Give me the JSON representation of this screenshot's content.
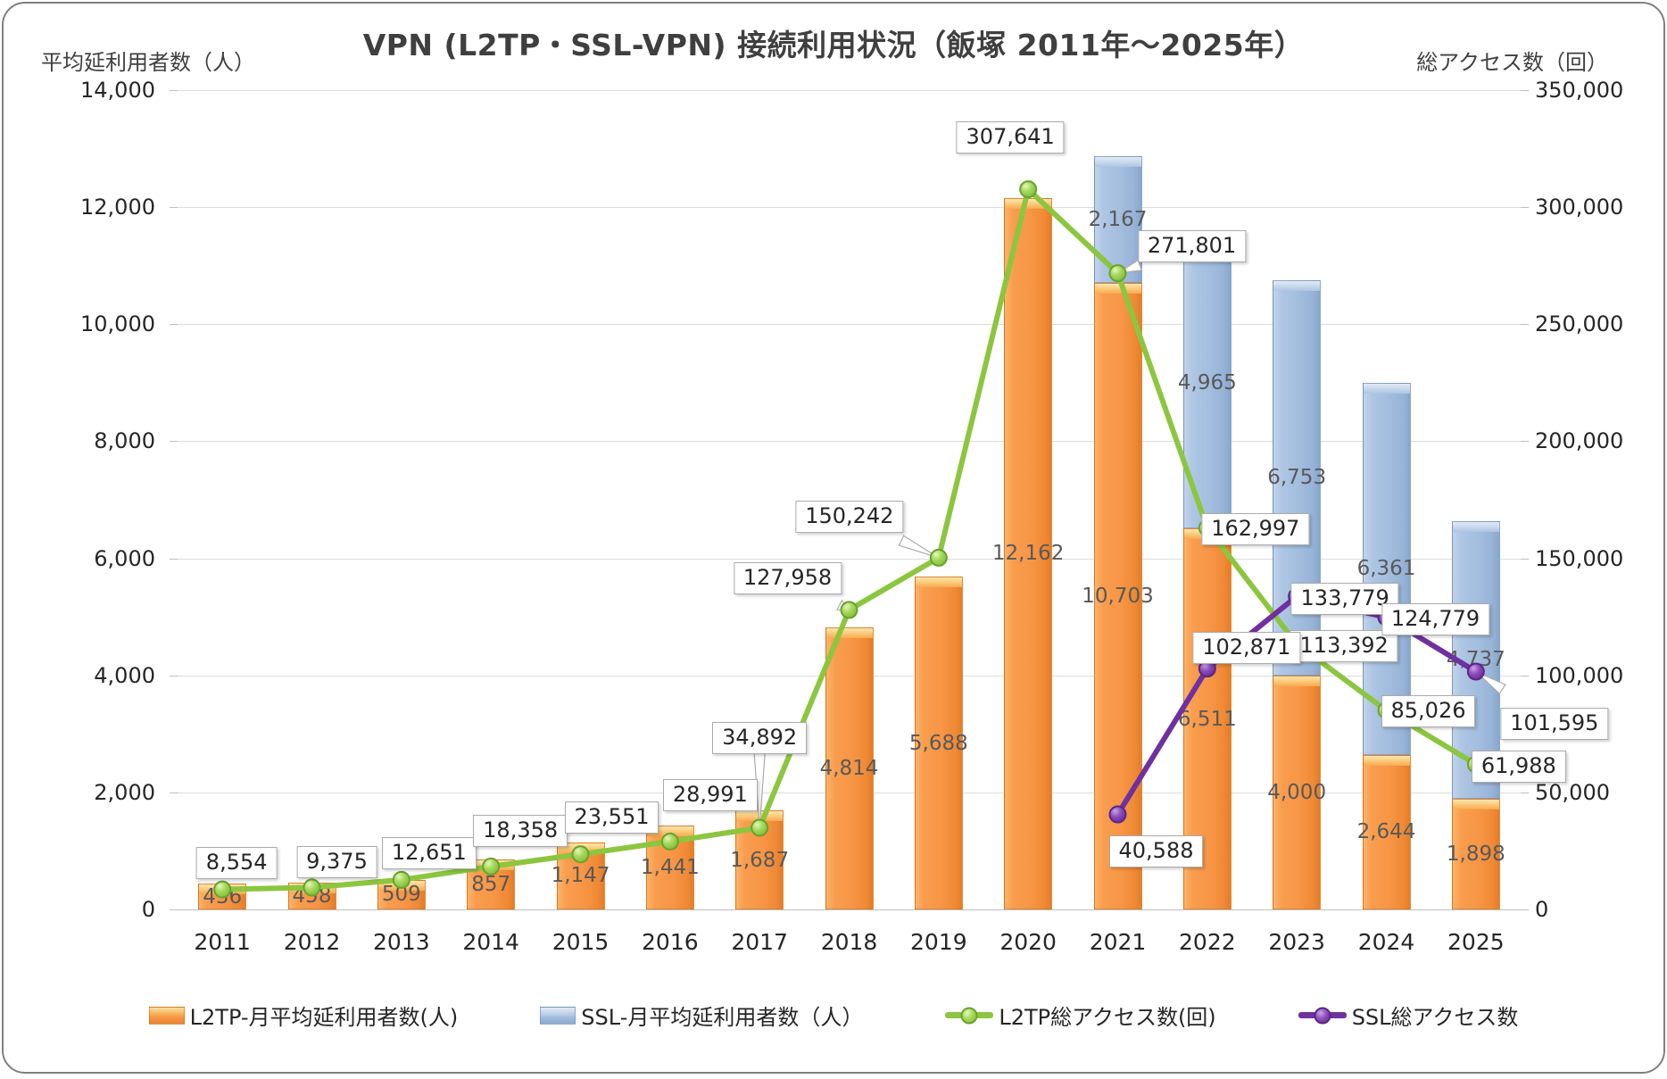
{
  "chart_data": {
    "type": "combo-stacked-bar-line",
    "title": "VPN (L2TP・SSL-VPN) 接続利用状況（飯塚 2011年～2025年）",
    "categories": [
      "2011",
      "2012",
      "2013",
      "2014",
      "2015",
      "2016",
      "2017",
      "2018",
      "2019",
      "2020",
      "2021",
      "2022",
      "2023",
      "2024",
      "2025"
    ],
    "left_axis": {
      "title": "平均延利用者数（人）",
      "min": 0,
      "max": 14000,
      "step": 2000
    },
    "right_axis": {
      "title": "総アクセス数（回）",
      "min": 0,
      "max": 350000,
      "step": 50000
    },
    "grid": true,
    "legend_position": "bottom",
    "series": [
      {
        "name": "L2TP-月平均延利用者数(人)",
        "type": "bar",
        "stack": "users",
        "axis": "left",
        "color": "#F79646",
        "values": [
          436,
          458,
          509,
          857,
          1147,
          1441,
          1687,
          4814,
          5688,
          12162,
          10703,
          6511,
          4000,
          2644,
          1898
        ]
      },
      {
        "name": "SSL-月平均延利用者数（人）",
        "type": "bar",
        "stack": "users",
        "axis": "left",
        "color": "#A3BDDE",
        "values": [
          null,
          null,
          null,
          null,
          null,
          null,
          null,
          null,
          null,
          null,
          2167,
          4965,
          6753,
          6361,
          4737
        ]
      },
      {
        "name": "L2TP総アクセス数(回)",
        "type": "line",
        "axis": "right",
        "color": "#8CC63F",
        "values": [
          8554,
          9375,
          12651,
          18358,
          23551,
          28991,
          34892,
          127958,
          150242,
          307641,
          271801,
          162997,
          113392,
          85026,
          61988
        ],
        "callout_offsets": [
          [
            16,
            -30
          ],
          [
            28,
            -28
          ],
          [
            31,
            -30
          ],
          [
            33,
            -40
          ],
          [
            35,
            -41
          ],
          [
            45,
            -52
          ],
          [
            0,
            -100
          ],
          [
            -69,
            -35
          ],
          [
            -100,
            -46
          ],
          [
            -20,
            -58
          ],
          [
            83,
            -30
          ],
          [
            54,
            2
          ],
          [
            53,
            2
          ],
          [
            47,
            1
          ],
          [
            48,
            3
          ]
        ]
      },
      {
        "name": "SSL総アクセス数",
        "type": "line",
        "axis": "right",
        "color": "#7030A0",
        "values": [
          null,
          null,
          null,
          null,
          null,
          null,
          null,
          null,
          null,
          null,
          40588,
          102871,
          133779,
          124779,
          101595
        ],
        "callout_offsets": [
          null,
          null,
          null,
          null,
          null,
          null,
          null,
          null,
          null,
          null,
          [
            43,
            41
          ],
          [
            44,
            -23
          ],
          [
            54,
            3
          ],
          [
            55,
            2
          ],
          [
            88,
            58
          ]
        ]
      }
    ]
  },
  "colors": {
    "grid": "#DCDCDC",
    "axis_line": "#C0C0C0",
    "tick_text": "#262626",
    "bar_label_text": "#595959",
    "callout_border": "#ABABAB",
    "title_text": "#3F3F3F"
  }
}
